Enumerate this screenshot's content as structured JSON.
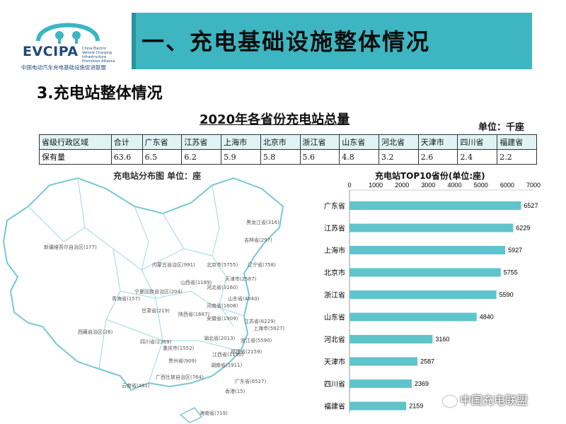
{
  "header": {
    "brand": "EVCIPA",
    "brand_sub": "China Electric Vehicle Charging Infrastructure Promotion Alliance",
    "org": "中国电动汽车充电基础设施促进联盟",
    "title": "一、充电基础设施整体情况",
    "accent": "#3db6c1"
  },
  "subtitle": "3.充电站整体情况",
  "table": {
    "title": "2020年各省份充电站总量",
    "unit": "单位：千座",
    "header": [
      "省级行政区域",
      "合计",
      "广东省",
      "江苏省",
      "上海市",
      "北京市",
      "浙江省",
      "山东省",
      "河北省",
      "天津市",
      "四川省",
      "福建省"
    ],
    "row": [
      "保有量",
      "63.6",
      "6.5",
      "6.2",
      "5.9",
      "5.8",
      "5.6",
      "4.8",
      "3.2",
      "2.6",
      "2.4",
      "2.2"
    ]
  },
  "map": {
    "title": "充电站分布图  单位：座",
    "labels": [
      "新疆维吾尔自治区(177)",
      "西藏自治区(26)",
      "青海省(157)",
      "宁夏回族自治区(204)",
      "甘肃省(219)",
      "内蒙古自治区(991)",
      "黑龙江省(316)",
      "吉林省(297)",
      "辽宁省(758)",
      "北京市(5755)",
      "天津市(2587)",
      "河北省(3160)",
      "山西省(1189)",
      "陕西省(1687)",
      "河南省(1608)",
      "山东省(4840)",
      "江苏省(6229)",
      "安徽省(1909)",
      "上海市(5927)",
      "浙江省(5590)",
      "湖北省(2013)",
      "四川省(2369)",
      "重庆市(1552)",
      "江西省(1130)",
      "福建省(2159)",
      "湖南省(1911)",
      "贵州省(909)",
      "云南省(461)",
      "广西壮族自治区(764)",
      "广东省(6527)",
      "香港(15)",
      "海南省(719)"
    ]
  },
  "chart_data": {
    "type": "bar",
    "title": "充电站TOP10省份(单位:座)",
    "orientation": "horizontal",
    "categories": [
      "广东省",
      "江苏省",
      "上海市",
      "北京市",
      "浙江省",
      "山东省",
      "河北省",
      "天津市",
      "四川省",
      "福建省"
    ],
    "values": [
      6527,
      6229,
      5927,
      5755,
      5590,
      4840,
      3160,
      2587,
      2369,
      2159
    ],
    "xlim": [
      0,
      7000
    ],
    "xticks": [
      "0",
      "1000",
      "2000",
      "3000",
      "4000",
      "5000",
      "6000",
      "7000"
    ],
    "bar_color": "#5fc4cc",
    "grid": false
  },
  "watermark": "中国充电联盟"
}
